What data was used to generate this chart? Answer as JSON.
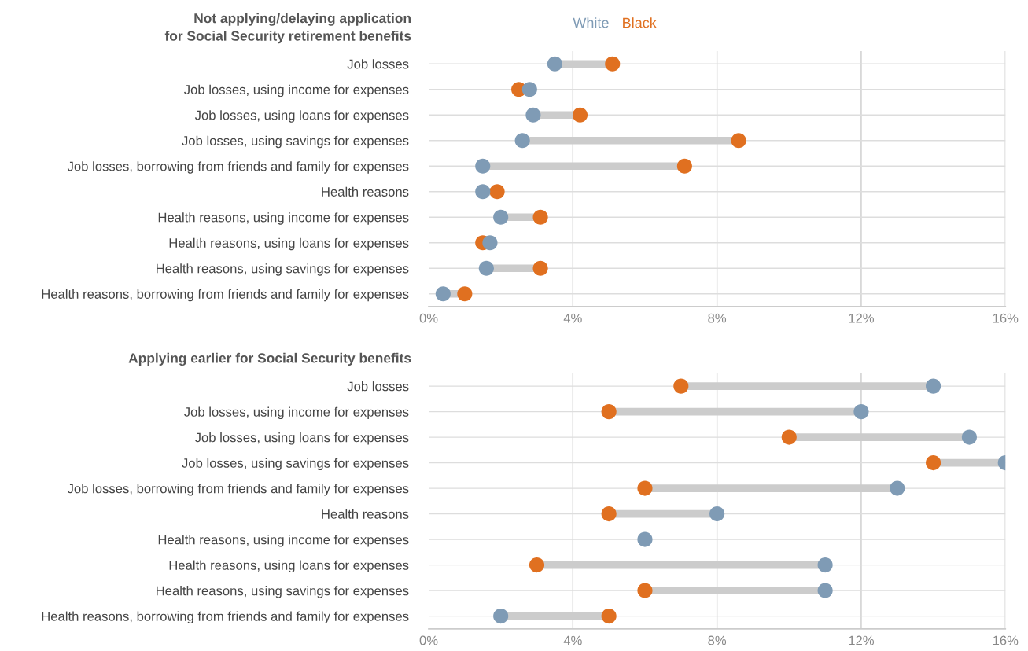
{
  "chart_data": [
    {
      "type": "scatter",
      "orientation": "horizontal",
      "title": "Not applying/delaying application\nfor Social Security retirement benefits",
      "categories": [
        "Job losses",
        "Job losses, using income for expenses",
        "Job losses, using loans for expenses",
        "Job losses, using savings for expenses",
        "Job losses, borrowing from friends and family for expenses",
        "Health reasons",
        "Health reasons, using income for expenses",
        "Health reasons, using loans for expenses",
        "Health reasons, using savings for expenses",
        "Health reasons, borrowing from friends and family for expenses"
      ],
      "series": [
        {
          "name": "White",
          "color": "#7f9bb5",
          "values": [
            3.5,
            2.8,
            2.9,
            2.6,
            1.5,
            1.5,
            2.0,
            1.7,
            1.6,
            0.4
          ]
        },
        {
          "name": "Black",
          "color": "#e07020",
          "values": [
            5.1,
            2.5,
            4.2,
            8.6,
            7.1,
            1.9,
            3.1,
            1.5,
            3.1,
            1.0
          ]
        }
      ],
      "xlim": [
        0,
        16
      ],
      "xticks": [
        {
          "value": 0,
          "label": "0%"
        },
        {
          "value": 4,
          "label": "4%"
        },
        {
          "value": 8,
          "label": "8%"
        },
        {
          "value": 12,
          "label": "12%"
        },
        {
          "value": 16,
          "label": "16%"
        }
      ],
      "grid": true,
      "legend": "top",
      "marker": "circle"
    },
    {
      "type": "scatter",
      "orientation": "horizontal",
      "title": "Applying earlier for Social Security benefits",
      "categories": [
        "Job losses",
        "Job losses, using income for expenses",
        "Job losses, using loans for expenses",
        "Job losses, using savings for expenses",
        "Job losses, borrowing from friends and family for expenses",
        "Health reasons",
        "Health reasons, using income for expenses",
        "Health reasons, using loans for expenses",
        "Health reasons, using savings for expenses",
        "Health reasons, borrowing from friends and family for expenses"
      ],
      "series": [
        {
          "color": "#7f9bb5",
          "values": [
            14,
            12,
            15,
            16,
            13,
            8,
            6,
            11,
            11,
            2
          ]
        },
        {
          "color": "#e07020",
          "values": [
            7,
            5,
            10,
            14,
            6,
            5,
            null,
            3,
            6,
            5
          ]
        }
      ],
      "xlim": [
        0,
        16
      ],
      "xticks": [
        {
          "value": 0,
          "label": "0%"
        },
        {
          "value": 4,
          "label": "4%"
        },
        {
          "value": 8,
          "label": "8%"
        },
        {
          "value": 12,
          "label": "12%"
        },
        {
          "value": 16,
          "label": "16%"
        }
      ],
      "grid": true,
      "marker": "circle"
    }
  ]
}
